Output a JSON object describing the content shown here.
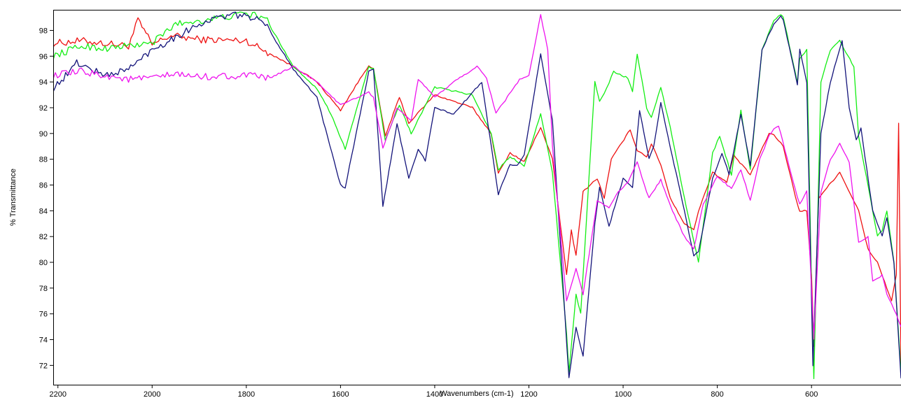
{
  "chart_data": {
    "type": "line",
    "title": "",
    "xlabel": "Wavenumbers (cm-1)",
    "ylabel": "% Transmittance",
    "xlim": [
      2210,
      410
    ],
    "ylim": [
      70.5,
      99.6
    ],
    "x_reversed": true,
    "grid": false,
    "legend": "none",
    "x_ticks": [
      2200,
      2000,
      1800,
      1600,
      1400,
      1200,
      1000,
      800,
      600
    ],
    "x_tick_labels": [
      "2200",
      "2000",
      "1800",
      "1600",
      "1400",
      "1200",
      "1000",
      "800",
      "600"
    ],
    "y_ticks": [
      72,
      74,
      76,
      78,
      80,
      82,
      84,
      86,
      88,
      90,
      92,
      94,
      96,
      98
    ],
    "y_tick_labels": [
      "72",
      "74",
      "76",
      "78",
      "80",
      "82",
      "84",
      "86",
      "88",
      "90",
      "92",
      "94",
      "96",
      "98"
    ],
    "series": [
      {
        "color": "#ee1111",
        "x": [
          2210,
          2150,
          2100,
          2050,
          2030,
          2000,
          1960,
          1900,
          1800,
          1700,
          1650,
          1600,
          1540,
          1530,
          1505,
          1475,
          1455,
          1400,
          1320,
          1280,
          1265,
          1240,
          1210,
          1175,
          1150,
          1120,
          1110,
          1100,
          1085,
          1055,
          1040,
          1025,
          985,
          970,
          950,
          940,
          920,
          900,
          870,
          850,
          840,
          810,
          780,
          765,
          730,
          690,
          680,
          660,
          630,
          625,
          610,
          600,
          595,
          585,
          540,
          500,
          480,
          460,
          440,
          430,
          420,
          415,
          410
        ],
        "y": [
          97.0,
          97.2,
          97.0,
          96.8,
          98.8,
          96.9,
          97.6,
          97.3,
          97.2,
          95.2,
          94.0,
          91.8,
          95.3,
          95.0,
          89.8,
          92.8,
          90.8,
          93.0,
          92.0,
          90.0,
          86.9,
          88.5,
          87.8,
          90.5,
          88.0,
          79.0,
          82.5,
          80.5,
          85.5,
          86.5,
          85.0,
          88.0,
          90.3,
          88.7,
          88.2,
          89.2,
          87.6,
          85.0,
          83.0,
          82.5,
          84.0,
          87.0,
          86.2,
          88.3,
          86.8,
          90.0,
          89.9,
          89.0,
          84.5,
          84.0,
          84.0,
          79.0,
          73.5,
          85.0,
          87.0,
          84.0,
          81.0,
          80.0,
          78.0,
          77.0,
          79.0,
          90.8,
          72.0
        ]
      },
      {
        "color": "#13ee13",
        "x": [
          2210,
          2150,
          2100,
          2000,
          1950,
          1850,
          1800,
          1760,
          1700,
          1650,
          1620,
          1590,
          1540,
          1530,
          1505,
          1475,
          1450,
          1400,
          1320,
          1280,
          1265,
          1240,
          1210,
          1175,
          1150,
          1120,
          1115,
          1100,
          1090,
          1060,
          1050,
          1035,
          1020,
          990,
          980,
          970,
          950,
          940,
          920,
          900,
          870,
          840,
          810,
          795,
          770,
          750,
          730,
          705,
          680,
          665,
          660,
          630,
          625,
          610,
          600,
          595,
          580,
          560,
          540,
          510,
          500,
          470,
          460,
          450,
          440,
          425,
          410
        ],
        "y": [
          96.0,
          96.8,
          96.6,
          97.0,
          98.5,
          99.0,
          99.3,
          99.0,
          95.2,
          93.5,
          91.5,
          88.8,
          95.2,
          95.0,
          89.5,
          92.2,
          90.0,
          93.6,
          93.0,
          90.0,
          87.2,
          88.2,
          87.5,
          91.5,
          87.0,
          74.5,
          71.5,
          77.5,
          76.0,
          94.0,
          92.5,
          93.5,
          94.8,
          94.3,
          93.3,
          96.2,
          92.0,
          91.2,
          93.6,
          90.5,
          85.0,
          80.0,
          88.5,
          89.8,
          86.8,
          91.8,
          87.2,
          96.5,
          98.8,
          99.2,
          99.0,
          94.0,
          95.8,
          96.5,
          78.0,
          71.0,
          94.0,
          96.5,
          97.2,
          95.2,
          89.8,
          84.0,
          82.0,
          82.5,
          84.0,
          80.0,
          71.5
        ]
      },
      {
        "color": "#13137a",
        "x": [
          2210,
          2175,
          2160,
          2100,
          2050,
          2000,
          1950,
          1900,
          1850,
          1800,
          1760,
          1700,
          1650,
          1600,
          1590,
          1540,
          1530,
          1510,
          1480,
          1455,
          1435,
          1420,
          1400,
          1360,
          1300,
          1265,
          1240,
          1225,
          1210,
          1175,
          1150,
          1115,
          1100,
          1085,
          1060,
          1050,
          1030,
          1000,
          980,
          965,
          945,
          935,
          920,
          900,
          870,
          850,
          840,
          810,
          790,
          775,
          750,
          730,
          705,
          680,
          665,
          660,
          630,
          625,
          610,
          600,
          597,
          580,
          560,
          535,
          520,
          505,
          495,
          470,
          450,
          440,
          425,
          410
        ],
        "y": [
          93.5,
          94.8,
          95.5,
          94.5,
          95.0,
          96.5,
          97.5,
          98.5,
          99.1,
          99.2,
          98.5,
          95.0,
          92.8,
          86.0,
          85.8,
          94.8,
          95.0,
          84.3,
          90.8,
          86.5,
          88.8,
          87.9,
          92.0,
          91.5,
          94.0,
          85.3,
          87.6,
          87.5,
          88.3,
          96.2,
          91.0,
          71.0,
          75.0,
          72.7,
          83.0,
          85.8,
          82.8,
          86.5,
          85.8,
          91.8,
          88.0,
          89.0,
          92.4,
          89.0,
          84.0,
          80.5,
          80.8,
          86.5,
          88.5,
          86.8,
          91.5,
          87.5,
          96.5,
          98.5,
          99.1,
          98.8,
          93.8,
          96.5,
          94.0,
          77.0,
          72.0,
          90.0,
          94.0,
          97.2,
          92.0,
          89.5,
          90.4,
          84.0,
          82.0,
          83.5,
          80.0,
          71.0
        ]
      },
      {
        "color": "#ee13ee",
        "x": [
          2210,
          2150,
          2100,
          2050,
          2000,
          1950,
          1900,
          1800,
          1750,
          1700,
          1650,
          1600,
          1540,
          1530,
          1510,
          1480,
          1450,
          1435,
          1400,
          1360,
          1310,
          1290,
          1270,
          1250,
          1220,
          1200,
          1175,
          1160,
          1150,
          1120,
          1100,
          1085,
          1055,
          1030,
          1010,
          990,
          970,
          955,
          945,
          920,
          895,
          870,
          850,
          830,
          800,
          770,
          750,
          730,
          710,
          690,
          680,
          670,
          630,
          625,
          610,
          600,
          595,
          580,
          560,
          540,
          520,
          500,
          480,
          470,
          450,
          440,
          420,
          410
        ],
        "y": [
          94.5,
          94.8,
          94.5,
          94.2,
          94.3,
          94.6,
          94.4,
          94.5,
          94.3,
          95.2,
          94.0,
          92.2,
          93.2,
          92.8,
          88.8,
          92.0,
          91.0,
          94.2,
          92.8,
          94.0,
          95.2,
          94.3,
          91.6,
          92.6,
          94.2,
          94.5,
          99.2,
          96.5,
          89.0,
          77.0,
          79.5,
          77.5,
          84.8,
          84.2,
          85.5,
          86.2,
          87.8,
          86.0,
          85.0,
          86.4,
          84.0,
          82.0,
          81.0,
          84.5,
          86.7,
          85.7,
          87.2,
          84.8,
          88.0,
          89.8,
          90.4,
          90.6,
          85.0,
          84.5,
          85.5,
          78.0,
          74.0,
          85.5,
          88.0,
          89.2,
          87.8,
          81.5,
          82.0,
          78.5,
          79.0,
          77.5,
          76.0,
          75.0
        ]
      }
    ]
  }
}
